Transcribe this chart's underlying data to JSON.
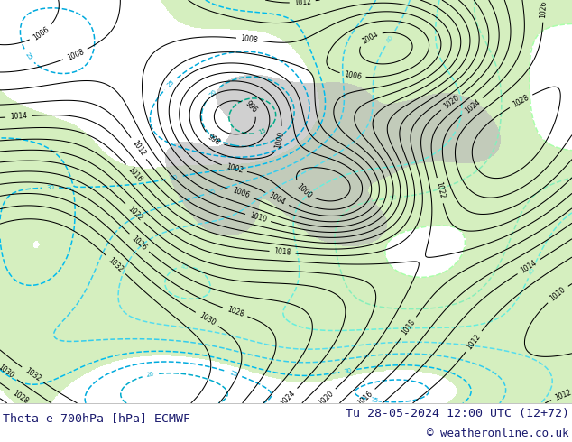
{
  "title_left": "Theta-e 700hPa [hPa] ECMWF",
  "title_right": "Tu 28-05-2024 12:00 UTC (12+72)",
  "copyright": "© weatheronline.co.uk",
  "bg_color": "#ffffff",
  "bottom_bar_color": "#ffffff",
  "title_color": "#1a1a6e",
  "figsize": [
    6.34,
    4.9
  ],
  "dpi": 100
}
